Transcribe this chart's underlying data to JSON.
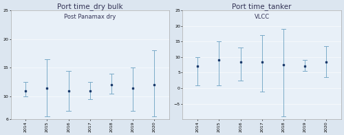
{
  "left_title": "Port time_dry bulk",
  "left_subtitle": "Post Panamax dry",
  "right_title": "Port time_tanker",
  "right_subtitle": "VLCC",
  "years": [
    "2014",
    "2015",
    "2016",
    "2017",
    "2018",
    "2019",
    "2020"
  ],
  "left_means": [
    11.0,
    11.5,
    11.0,
    11.0,
    12.0,
    11.5,
    12.0
  ],
  "left_ci_low": [
    10.0,
    6.5,
    7.5,
    9.5,
    10.5,
    7.5,
    6.5
  ],
  "left_ci_high": [
    12.5,
    16.5,
    14.5,
    12.5,
    14.0,
    15.0,
    18.0
  ],
  "left_ylim": [
    6,
    25
  ],
  "left_yticks": [
    6,
    10,
    15,
    20,
    25
  ],
  "right_means": [
    7.0,
    9.0,
    8.5,
    8.5,
    7.5,
    7.0,
    8.5
  ],
  "right_ci_low": [
    1.0,
    1.0,
    2.5,
    -1.0,
    -9.0,
    5.5,
    3.5
  ],
  "right_ci_high": [
    10.0,
    15.0,
    13.0,
    17.0,
    19.0,
    9.0,
    13.5
  ],
  "right_ylim": [
    -10,
    25
  ],
  "right_yticks": [
    -5,
    0,
    5,
    10,
    15,
    20,
    25
  ],
  "dot_color": "#1b3a6b",
  "line_color": "#7aaac8",
  "bg_color": "#dce6f0",
  "plot_bg": "#e8f0f8",
  "title_fontsize": 7.5,
  "subtitle_fontsize": 6.0,
  "tick_fontsize": 4.5,
  "title_color": "#333355"
}
